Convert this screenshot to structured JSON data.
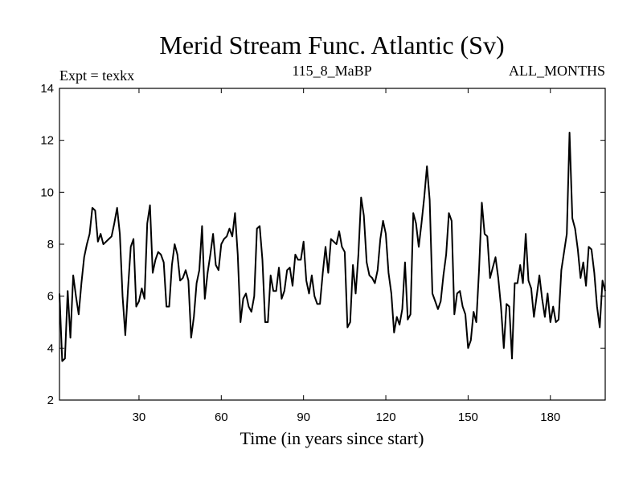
{
  "chart_data": {
    "type": "line",
    "title": "Merid Stream Func. Atlantic (Sv)",
    "subtitle_left": "Expt = texkx",
    "subtitle_center": "115_8_MaBP",
    "subtitle_right": "ALL_MONTHS",
    "xlabel": "Time (in years since start)",
    "ylabel": "",
    "xlim": [
      1,
      200
    ],
    "ylim": [
      2,
      14
    ],
    "xticks": [
      30,
      60,
      90,
      120,
      150,
      180
    ],
    "yticks": [
      2,
      4,
      6,
      8,
      10,
      12,
      14
    ],
    "grid": false,
    "series": [
      {
        "name": "Merid Stream Func. Atlantic",
        "color": "#000000",
        "x": [
          1,
          2,
          3,
          4,
          5,
          6,
          7,
          8,
          9,
          10,
          11,
          12,
          13,
          14,
          15,
          16,
          17,
          18,
          19,
          20,
          21,
          22,
          23,
          24,
          25,
          26,
          27,
          28,
          29,
          30,
          31,
          32,
          33,
          34,
          35,
          36,
          37,
          38,
          39,
          40,
          41,
          42,
          43,
          44,
          45,
          46,
          47,
          48,
          49,
          50,
          51,
          52,
          53,
          54,
          55,
          56,
          57,
          58,
          59,
          60,
          61,
          62,
          63,
          64,
          65,
          66,
          67,
          68,
          69,
          70,
          71,
          72,
          73,
          74,
          75,
          76,
          77,
          78,
          79,
          80,
          81,
          82,
          83,
          84,
          85,
          86,
          87,
          88,
          89,
          90,
          91,
          92,
          93,
          94,
          95,
          96,
          97,
          98,
          99,
          100,
          101,
          102,
          103,
          104,
          105,
          106,
          107,
          108,
          109,
          110,
          111,
          112,
          113,
          114,
          115,
          116,
          117,
          118,
          119,
          120,
          121,
          122,
          123,
          124,
          125,
          126,
          127,
          128,
          129,
          130,
          131,
          132,
          133,
          134,
          135,
          136,
          137,
          138,
          139,
          140,
          141,
          142,
          143,
          144,
          145,
          146,
          147,
          148,
          149,
          150,
          151,
          152,
          153,
          154,
          155,
          156,
          157,
          158,
          159,
          160,
          161,
          162,
          163,
          164,
          165,
          166,
          167,
          168,
          169,
          170,
          171,
          172,
          173,
          174,
          175,
          176,
          177,
          178,
          179,
          180,
          181,
          182,
          183,
          184,
          185,
          186,
          187,
          188,
          189,
          190,
          191,
          192,
          193,
          194,
          195,
          196,
          197,
          198,
          199,
          200
        ],
        "values": [
          6.1,
          3.5,
          3.6,
          6.2,
          4.4,
          6.8,
          6.0,
          5.3,
          6.5,
          7.5,
          8.0,
          8.4,
          9.4,
          9.3,
          8.1,
          8.4,
          8.0,
          8.1,
          8.2,
          8.3,
          8.8,
          9.4,
          8.4,
          6.0,
          4.5,
          6.3,
          7.9,
          8.2,
          5.6,
          5.8,
          6.3,
          5.9,
          8.8,
          9.5,
          6.9,
          7.4,
          7.7,
          7.6,
          7.3,
          5.6,
          5.6,
          7.2,
          8.0,
          7.6,
          6.6,
          6.7,
          7.0,
          6.6,
          4.4,
          5.2,
          6.5,
          7.0,
          8.7,
          5.9,
          6.9,
          7.6,
          8.4,
          7.2,
          7.0,
          8.0,
          8.2,
          8.3,
          8.6,
          8.3,
          9.2,
          7.6,
          5.0,
          5.9,
          6.1,
          5.6,
          5.4,
          6.0,
          8.6,
          8.7,
          7.4,
          5.0,
          5.0,
          6.8,
          6.2,
          6.2,
          7.1,
          5.9,
          6.2,
          7.0,
          7.1,
          6.4,
          7.6,
          7.4,
          7.4,
          8.1,
          6.6,
          6.1,
          6.8,
          6.0,
          5.7,
          5.7,
          6.9,
          7.9,
          6.9,
          8.2,
          8.1,
          8.0,
          8.5,
          7.9,
          7.7,
          4.8,
          5.0,
          7.2,
          6.1,
          7.6,
          9.8,
          9.1,
          7.3,
          6.8,
          6.7,
          6.5,
          7.0,
          8.2,
          8.9,
          8.4,
          6.9,
          6.1,
          4.6,
          5.2,
          4.9,
          5.5,
          7.3,
          5.1,
          5.3,
          9.2,
          8.8,
          7.9,
          8.8,
          9.8,
          11.0,
          9.7,
          6.1,
          5.8,
          5.5,
          5.8,
          6.8,
          7.6,
          9.2,
          8.9,
          5.3,
          6.1,
          6.2,
          5.6,
          5.3,
          4.0,
          4.3,
          5.4,
          5.0,
          7.0,
          9.6,
          8.4,
          8.3,
          6.7,
          7.1,
          7.5,
          6.7,
          5.6,
          4.0,
          5.7,
          5.6,
          3.6,
          6.5,
          6.5,
          7.2,
          6.5,
          8.4,
          6.6,
          6.3,
          5.2,
          6.0,
          6.8,
          5.9,
          5.2,
          6.1,
          5.0,
          5.6,
          5.0,
          5.1,
          7.0,
          7.7,
          8.4,
          12.3,
          9.0,
          8.6,
          7.8,
          6.7,
          7.3,
          6.4,
          7.9,
          7.8,
          6.9,
          5.6,
          4.8,
          6.6,
          6.2
        ]
      }
    ]
  }
}
